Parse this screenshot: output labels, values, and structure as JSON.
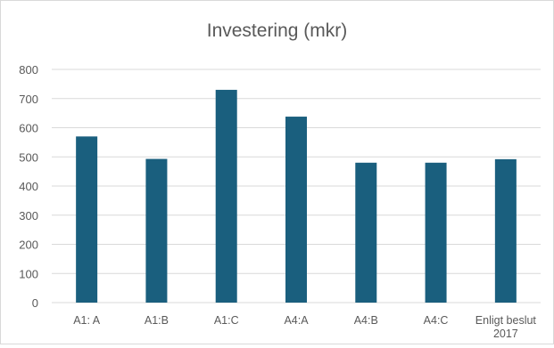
{
  "chart_data": {
    "type": "bar",
    "title": "Investering (mkr)",
    "categories": [
      "A1: A",
      "A1:B",
      "A1:C",
      "A4:A",
      "A4:B",
      "A4:C",
      "Enligt beslut 2017"
    ],
    "values": [
      570,
      493,
      730,
      638,
      480,
      480,
      492
    ],
    "xlabel": "",
    "ylabel": "",
    "ylim": [
      0,
      800
    ],
    "yticks": [
      0,
      100,
      200,
      300,
      400,
      500,
      600,
      700,
      800
    ],
    "grid": true,
    "bar_color": "#1a5f7e",
    "grid_color": "#d9d9d9",
    "legend": "none"
  }
}
